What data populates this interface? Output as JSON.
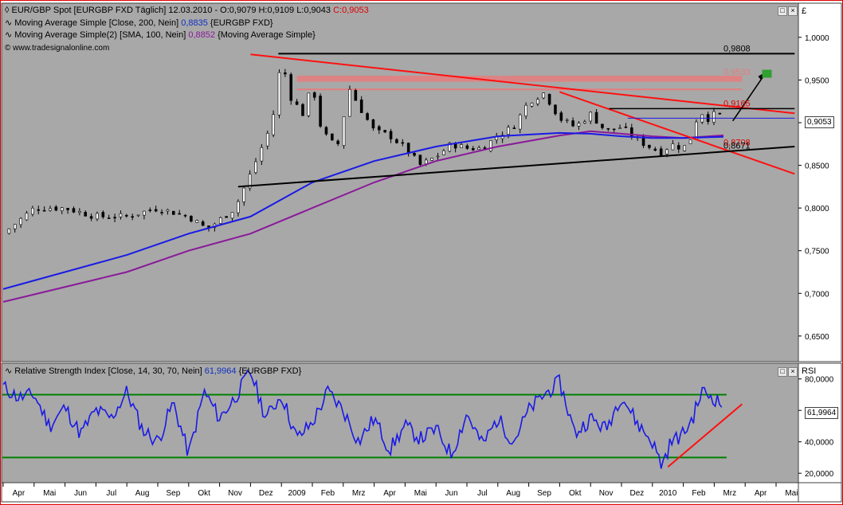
{
  "main_panel": {
    "title_line": "EUR/GBP Spot [EURGBP FXD  Täglich] 12.03.2010 - O:0,9079 H:0,9109 L:0,9043",
    "title_close": "C:0,9053",
    "ma200_text": "Moving Average Simple [Close, 200, Nein]",
    "ma200_value": "0,8835",
    "ma200_suffix": "{EURGBP FXD}",
    "ma100_text": "Moving Average Simple(2) [SMA, 100, Nein]",
    "ma100_value": "0,8852",
    "ma100_suffix": "{Moving Average Simple}",
    "copyright": "© www.tradesignalonline.com",
    "axis_unit": "£",
    "current_price": "0,9053"
  },
  "rsi_panel": {
    "title_text": "Relative Strength Index [Close, 14, 30, 70, Nein]",
    "title_value": "61,9964",
    "title_suffix": "{EURGBP FXD}",
    "axis_unit": "RSI",
    "current_value": "61,9964"
  },
  "colors": {
    "background": "#a8a8a8",
    "candle_up": "#ffffff",
    "candle_down": "#000000",
    "ma200": "#1a1ae6",
    "ma100": "#8a1a9a",
    "trendline_red": "#ff1010",
    "support_black": "#000000",
    "rsi_line": "#1a1ae6",
    "rsi_bands": "#008000",
    "zone_fill": "#e67c7c",
    "target_box": "#30a030"
  },
  "chart_data": [
    {
      "type": "candlestick",
      "title": "EUR/GBP Spot [EURGBP FXD  Täglich] 12.03.2010",
      "ylim": [
        0.62,
        1.04
      ],
      "yticks": [
        "1,0000",
        "0,9500",
        "0,9000",
        "0,8500",
        "0,8000",
        "0,7500",
        "0,7000",
        "0,6500"
      ],
      "ytick_values": [
        1.0,
        0.95,
        0.9,
        0.85,
        0.8,
        0.75,
        0.7,
        0.65
      ],
      "xticks": [
        "Apr",
        "Mai",
        "Jun",
        "Jul",
        "Aug",
        "Sep",
        "Okt",
        "Nov",
        "Dez",
        "2009",
        "Feb",
        "Mrz",
        "Apr",
        "Mai",
        "Jun",
        "Jul",
        "Aug",
        "Sep",
        "Okt",
        "Nov",
        "Dez",
        "2010",
        "Feb",
        "Mrz",
        "Apr",
        "Mai"
      ],
      "price_path_months": [
        0,
        1,
        2,
        3,
        4,
        5,
        6,
        6.6,
        7.5,
        8.0,
        8.7,
        9.0,
        9.3,
        9.7,
        10.0,
        10.3,
        10.8,
        11.2,
        11.5,
        12.0,
        12.5,
        13.0,
        13.5,
        14.0,
        14.5,
        15.0,
        15.5,
        16.0,
        16.5,
        17.0,
        17.5,
        18.0,
        18.5,
        19.0,
        19.5,
        20.0,
        20.5,
        21.0,
        21.3,
        21.6,
        22.0,
        22.3,
        22.5,
        22.8,
        23.1,
        23.3
      ],
      "price_path": [
        0.77,
        0.8,
        0.8,
        0.79,
        0.79,
        0.8,
        0.79,
        0.775,
        0.8,
        0.84,
        0.9,
        0.975,
        0.93,
        0.91,
        0.945,
        0.89,
        0.87,
        0.94,
        0.92,
        0.89,
        0.885,
        0.87,
        0.85,
        0.86,
        0.875,
        0.87,
        0.87,
        0.885,
        0.895,
        0.925,
        0.935,
        0.905,
        0.895,
        0.91,
        0.89,
        0.895,
        0.88,
        0.87,
        0.865,
        0.875,
        0.87,
        0.885,
        0.915,
        0.905,
        0.912,
        0.9053
      ],
      "ma200_months": [
        0,
        4,
        6,
        8,
        10,
        12,
        14,
        16,
        18,
        19,
        20,
        21,
        22,
        23.3
      ],
      "ma200_values": [
        0.705,
        0.745,
        0.77,
        0.79,
        0.83,
        0.855,
        0.872,
        0.884,
        0.888,
        0.887,
        0.884,
        0.882,
        0.882,
        0.8835
      ],
      "ma100_months": [
        0,
        4,
        6,
        8,
        10,
        12,
        14,
        16,
        18,
        19,
        20,
        21,
        22,
        23.3
      ],
      "ma100_values": [
        0.69,
        0.725,
        0.75,
        0.77,
        0.8,
        0.83,
        0.855,
        0.872,
        0.885,
        0.89,
        0.887,
        0.884,
        0.882,
        0.8852
      ],
      "annotations": [
        {
          "label": "0,9808",
          "value": 0.9808
        },
        {
          "label": "0,9533",
          "value": 0.9533
        },
        {
          "label": "0,9165",
          "value": 0.9165
        },
        {
          "label": "0,8708",
          "value": 0.8708
        },
        {
          "label": "0,8671",
          "value": 0.8671
        }
      ],
      "last_close": 0.9053
    },
    {
      "type": "line",
      "title": "Relative Strength Index [Close, 14, 30, 70, Nein]",
      "ylim": [
        14,
        90
      ],
      "yticks": [
        "80,0000",
        "60,0000",
        "40,0000",
        "20,0000"
      ],
      "ytick_values": [
        80,
        60,
        40,
        20
      ],
      "bands": [
        30,
        70
      ],
      "rsi_months": [
        0,
        0.5,
        1,
        1.5,
        2,
        2.5,
        3,
        3.5,
        4,
        4.5,
        5,
        5.5,
        6,
        6.5,
        7,
        7.5,
        8,
        8.5,
        9,
        9.5,
        10,
        10.5,
        11,
        11.5,
        12,
        12.5,
        13,
        13.5,
        14,
        14.5,
        15,
        15.5,
        16,
        16.5,
        17,
        17.5,
        18,
        18.5,
        19,
        19.5,
        20,
        20.5,
        21,
        21.3,
        21.6,
        22,
        22.3,
        22.6,
        23,
        23.3
      ],
      "rsi_values": [
        75,
        68,
        70,
        50,
        62,
        45,
        60,
        55,
        72,
        48,
        40,
        65,
        32,
        72,
        55,
        68,
        85,
        55,
        70,
        42,
        52,
        72,
        60,
        40,
        55,
        35,
        50,
        42,
        48,
        32,
        58,
        38,
        55,
        40,
        60,
        70,
        78,
        45,
        55,
        48,
        70,
        52,
        40,
        25,
        40,
        45,
        55,
        72,
        68,
        61.9964
      ],
      "last_value": 61.9964
    }
  ]
}
